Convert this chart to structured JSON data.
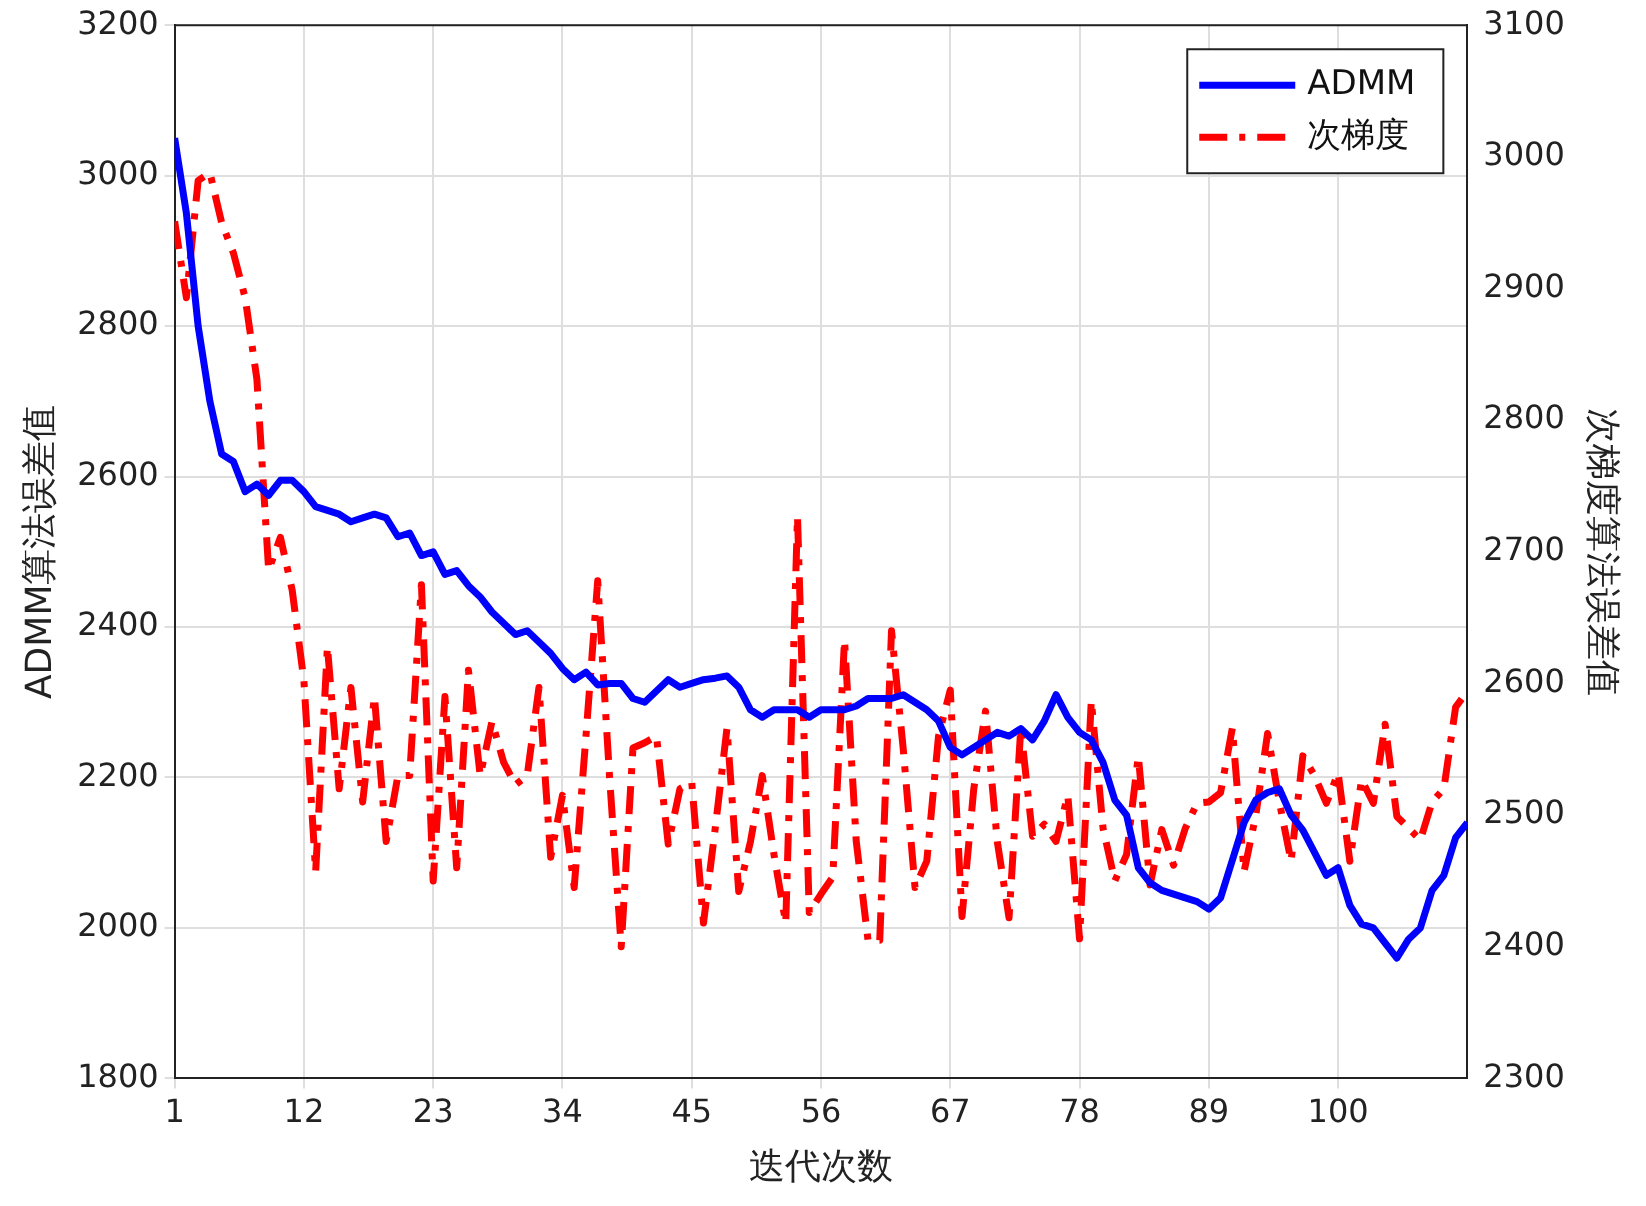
{
  "chart_data": {
    "type": "line",
    "xlabel": "迭代次数",
    "ylabel": "ADMM算法误差值",
    "y2label": "次梯度算法误差值",
    "x": [
      1,
      2,
      3,
      4,
      5,
      6,
      7,
      8,
      9,
      10,
      11,
      12,
      13,
      14,
      15,
      16,
      17,
      18,
      19,
      20,
      21,
      22,
      23,
      24,
      25,
      26,
      27,
      28,
      29,
      30,
      31,
      32,
      33,
      34,
      35,
      36,
      37,
      38,
      39,
      40,
      41,
      42,
      43,
      44,
      45,
      46,
      47,
      48,
      49,
      50,
      51,
      52,
      53,
      54,
      55,
      56,
      57,
      58,
      59,
      60,
      61,
      62,
      63,
      64,
      65,
      66,
      67,
      68,
      69,
      70,
      71,
      72,
      73,
      74,
      75,
      76,
      77,
      78,
      79,
      80,
      81,
      82,
      83,
      84,
      85,
      86,
      87,
      88,
      89,
      90,
      91,
      92,
      93,
      94,
      95,
      96,
      97,
      98,
      99,
      100,
      101,
      102,
      103,
      104,
      105,
      106,
      107,
      108,
      109,
      110,
      111
    ],
    "series": [
      {
        "name": "ADMM",
        "color": "#0000ff",
        "line_style": "solid",
        "values": [
          3050,
          2950,
          2800,
          2700,
          2630,
          2620,
          2580,
          2590,
          2575,
          2595,
          2595,
          2580,
          2560,
          2555,
          2550,
          2540,
          2545,
          2550,
          2545,
          2520,
          2525,
          2495,
          2500,
          2470,
          2475,
          2455,
          2440,
          2420,
          2405,
          2390,
          2395,
          2380,
          2365,
          2345,
          2330,
          2340,
          2323,
          2325,
          2325,
          2305,
          2300,
          2315,
          2330,
          2320,
          2325,
          2330,
          2332,
          2335,
          2320,
          2290,
          2280,
          2290,
          2290,
          2290,
          2280,
          2290,
          2290,
          2290,
          2295,
          2305,
          2305,
          2305,
          2310,
          2300,
          2290,
          2275,
          2240,
          2230,
          2240,
          2250,
          2260,
          2255,
          2265,
          2250,
          2275,
          2310,
          2280,
          2260,
          2250,
          2220,
          2170,
          2150,
          2080,
          2060,
          2050,
          2045,
          2040,
          2035,
          2025,
          2040,
          2090,
          2140,
          2170,
          2180,
          2185,
          2150,
          2130,
          2100,
          2070,
          2080,
          2030,
          2005,
          2000,
          1980,
          1960,
          1985,
          2000,
          2050,
          2070,
          2120,
          2140
        ]
      },
      {
        "name": "次梯度",
        "color": "#ff0000",
        "line_style": "dashed",
        "axis": "y2",
        "values": [
          2951,
          2893,
          2982,
          2988,
          2950,
          2927,
          2893,
          2831,
          2686,
          2711,
          2671,
          2602,
          2457,
          2628,
          2520,
          2597,
          2510,
          2590,
          2480,
          2530,
          2530,
          2675,
          2450,
          2590,
          2460,
          2610,
          2530,
          2571,
          2540,
          2523,
          2530,
          2597,
          2468,
          2515,
          2445,
          2560,
          2678,
          2530,
          2400,
          2551,
          2555,
          2560,
          2478,
          2520,
          2525,
          2418,
          2490,
          2566,
          2442,
          2480,
          2530,
          2470,
          2418,
          2727,
          2426,
          2440,
          2453,
          2633,
          2480,
          2405,
          2405,
          2640,
          2550,
          2445,
          2465,
          2560,
          2595,
          2423,
          2520,
          2579,
          2480,
          2422,
          2566,
          2484,
          2493,
          2480,
          2515,
          2406,
          2587,
          2490,
          2450,
          2470,
          2545,
          2447,
          2489,
          2462,
          2490,
          2509,
          2510,
          2517,
          2566,
          2457,
          2500,
          2562,
          2510,
          2465,
          2545,
          2530,
          2509,
          2532,
          2465,
          2527,
          2509,
          2569,
          2499,
          2490,
          2481,
          2510,
          2520,
          2582,
          2594
        ]
      }
    ],
    "xlim": [
      1,
      111
    ],
    "xticks": [
      1,
      12,
      23,
      34,
      45,
      56,
      67,
      78,
      89,
      100
    ],
    "ylim": [
      1800,
      3200
    ],
    "yticks": [
      1800,
      2000,
      2200,
      2400,
      2600,
      2800,
      3000,
      3200
    ],
    "y2lim": [
      2300,
      3100
    ],
    "y2ticks": [
      2300,
      2400,
      2500,
      2600,
      2700,
      2800,
      2900,
      3000,
      3100
    ],
    "grid": true,
    "legend": "top right",
    "marker": "none"
  }
}
